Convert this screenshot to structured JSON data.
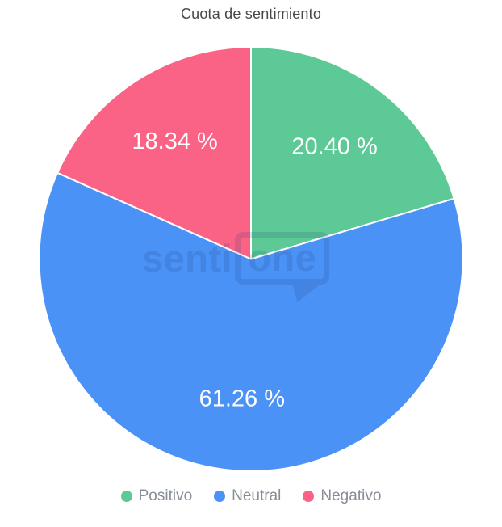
{
  "title": "Cuota de sentimiento",
  "watermark": {
    "part1": "senti",
    "part2": "one"
  },
  "chart_data": {
    "type": "pie",
    "title": "Cuota de sentimiento",
    "start_angle_deg": 0,
    "direction": "clockwise",
    "legend_position": "bottom",
    "label_color": "#ffffff",
    "series": [
      {
        "name": "Positivo",
        "value": 20.4,
        "label": "20.40 %",
        "color": "#5DC996"
      },
      {
        "name": "Neutral",
        "value": 61.26,
        "label": "61.26 %",
        "color": "#4A92F6"
      },
      {
        "name": "Negativo",
        "value": 18.34,
        "label": "18.34 %",
        "color": "#FA6286"
      }
    ]
  }
}
